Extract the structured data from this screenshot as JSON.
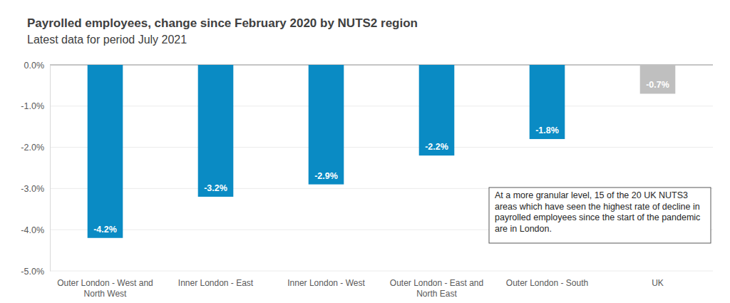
{
  "chart_data": {
    "type": "bar",
    "title": "Payrolled employees, change since February 2020 by NUTS2 region",
    "subtitle": "Latest data for period July 2021",
    "categories": [
      "Outer London - West and North West",
      "Inner London - East",
      "Inner London - West",
      "Outer London - East and North East",
      "Outer London - South",
      "UK"
    ],
    "values": [
      -4.2,
      -3.2,
      -2.9,
      -2.2,
      -1.8,
      -0.7
    ],
    "value_labels": [
      "-4.2%",
      "-3.2%",
      "-2.9%",
      "-2.2%",
      "-1.8%",
      "-0.7%"
    ],
    "colors": [
      "#0a8bc4",
      "#0a8bc4",
      "#0a8bc4",
      "#0a8bc4",
      "#0a8bc4",
      "#bfbfbf"
    ],
    "ylim": [
      -5,
      0
    ],
    "yticks": [
      {
        "value": -5,
        "label": "-5.0%"
      },
      {
        "value": -4,
        "label": "-4.0%"
      },
      {
        "value": -3,
        "label": "-3.0%"
      },
      {
        "value": -2,
        "label": "-2.0%"
      },
      {
        "value": -1,
        "label": "-1.0%"
      },
      {
        "value": 0,
        "label": "0.0%"
      }
    ],
    "grid": true,
    "data_labels": true,
    "annotation": "At a more granular level, 15 of the 20 UK NUTS3 areas which have seen the highest rate of decline in payrolled employees since the start of the pandemic are in London."
  }
}
